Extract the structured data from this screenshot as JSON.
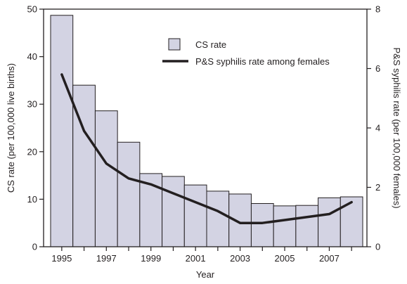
{
  "chart_data": {
    "type": "bar+line",
    "xlabel": "Year",
    "ylabel_left": "CS rate (per 100,000 live births)",
    "ylabel_right": "P&S syphilis rate (per 100,000 females)",
    "ylim_left": [
      0,
      50
    ],
    "ylim_right": [
      0,
      8
    ],
    "yticks_left": [
      0,
      10,
      20,
      30,
      40,
      50
    ],
    "yticks_right": [
      0,
      2,
      4,
      6,
      8
    ],
    "xtick_labels": [
      "1995",
      "1997",
      "1999",
      "2001",
      "2003",
      "2005",
      "2007"
    ],
    "grid": false,
    "legend_position": "top-right",
    "categories": [
      1995,
      1996,
      1997,
      1998,
      1999,
      2000,
      2001,
      2002,
      2003,
      2004,
      2005,
      2006,
      2007,
      2008
    ],
    "series": [
      {
        "name": "CS rate",
        "type": "bar",
        "axis": "left",
        "color": "#d3d3e3",
        "values": [
          48.7,
          34.0,
          28.6,
          22.0,
          15.4,
          14.8,
          13.0,
          11.7,
          11.1,
          9.1,
          8.6,
          8.7,
          10.3,
          10.5
        ]
      },
      {
        "name": "P&S syphilis rate among females",
        "type": "line",
        "axis": "right",
        "color": "#231f20",
        "values": [
          5.8,
          3.9,
          2.8,
          2.3,
          2.1,
          1.8,
          1.5,
          1.2,
          0.8,
          0.8,
          0.9,
          1.0,
          1.1,
          1.5
        ]
      }
    ]
  }
}
